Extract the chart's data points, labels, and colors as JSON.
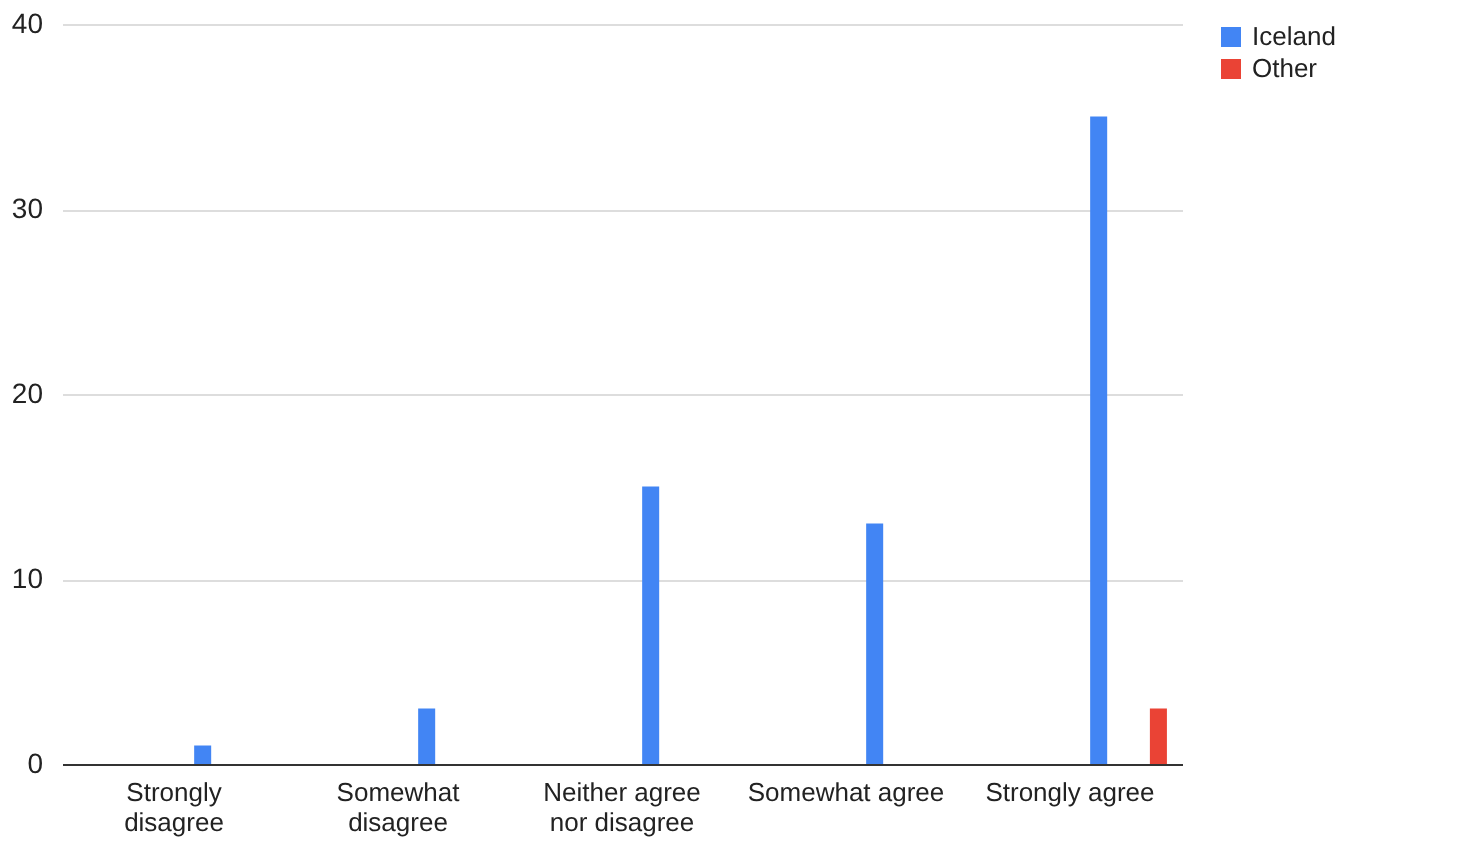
{
  "chart_data": {
    "type": "bar",
    "categories": [
      "Strongly disagree",
      "Somewhat disagree",
      "Neither agree nor disagree",
      "Somewhat agree",
      "Strongly agree"
    ],
    "series": [
      {
        "name": "Iceland",
        "color": "#4285f4",
        "values": [
          1,
          3,
          15,
          13,
          35
        ]
      },
      {
        "name": "Other",
        "color": "#ea4335",
        "values": [
          null,
          null,
          null,
          null,
          3
        ]
      }
    ],
    "ylim": [
      0,
      40
    ],
    "yticks": [
      0,
      10,
      20,
      30,
      40
    ],
    "grid": "y",
    "legend": "top right"
  }
}
